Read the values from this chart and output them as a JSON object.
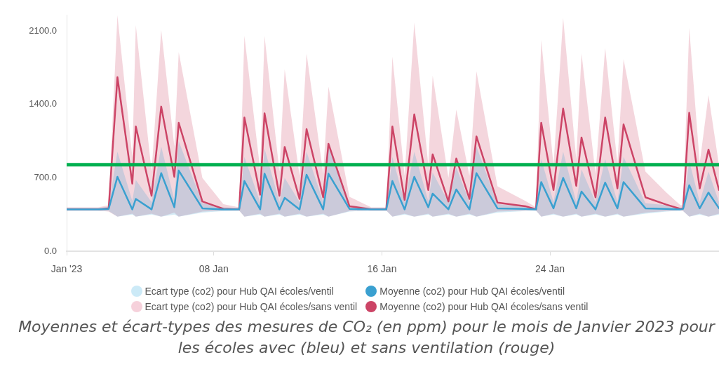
{
  "chart_data": {
    "type": "line",
    "x": [
      "2023-01-01T00:00",
      "2023-01-02T12:00",
      "2023-01-03T00:00",
      "2023-01-03T10:00",
      "2023-01-04T03:00",
      "2023-01-04T07:00",
      "2023-01-05T01:00",
      "2023-01-05T12:00",
      "2023-01-06T03:00",
      "2023-01-06T08:00",
      "2023-01-07T11:00",
      "2023-01-08T11:00",
      "2023-01-09T05:00",
      "2023-01-09T11:00",
      "2023-01-10T05:00",
      "2023-01-10T10:00",
      "2023-01-11T03:00",
      "2023-01-11T09:00",
      "2023-01-12T02:00",
      "2023-01-12T10:00",
      "2023-01-13T05:00",
      "2023-01-13T11:00",
      "2023-01-14T11:00",
      "2023-01-15T12:00",
      "2023-01-16T05:00",
      "2023-01-16T12:00",
      "2023-01-17T02:00",
      "2023-01-17T13:00",
      "2023-01-18T05:00",
      "2023-01-18T10:00",
      "2023-01-19T04:00",
      "2023-01-19T13:00",
      "2023-01-20T04:00",
      "2023-01-20T12:00",
      "2023-01-21T12:00",
      "2023-01-22T20:00",
      "2023-01-23T08:00",
      "2023-01-23T14:00",
      "2023-01-24T04:00",
      "2023-01-24T15:00",
      "2023-01-25T06:00",
      "2023-01-25T12:00",
      "2023-01-26T04:00",
      "2023-01-26T15:00",
      "2023-01-27T05:00",
      "2023-01-27T12:00",
      "2023-01-28T13:00",
      "2023-01-29T13:00",
      "2023-01-30T05:00",
      "2023-01-30T08:00",
      "2023-01-30T15:00",
      "2023-01-31T03:00",
      "2023-01-31T13:00",
      "2023-02-01T01:00"
    ],
    "series": [
      {
        "name": "Ecart type (co2) pour Hub QAI écoles/ventil",
        "type": "area",
        "color": "#c3e6f6",
        "values": [
          null,
          null,
          null,
          null,
          null,
          null,
          null,
          null,
          null,
          null,
          null,
          null,
          null,
          null,
          null,
          null,
          null,
          null,
          null,
          null,
          null,
          null,
          null,
          null,
          null,
          null,
          null,
          null,
          null,
          null,
          null,
          null,
          null,
          null,
          null,
          null,
          null,
          null,
          null,
          null,
          null,
          null,
          null,
          null,
          null,
          null,
          null,
          null,
          null,
          null,
          null,
          null,
          null,
          null
        ]
      },
      {
        "name": "Moyenne (co2) pour Hub QAI écoles/ventil",
        "color": "#3aa0d0",
        "values": [
          400,
          400,
          405,
          710,
          400,
          500,
          400,
          745,
          420,
          770,
          410,
          400,
          400,
          670,
          400,
          740,
          400,
          510,
          400,
          730,
          400,
          740,
          405,
          400,
          400,
          670,
          400,
          710,
          420,
          550,
          400,
          590,
          400,
          745,
          410,
          405,
          400,
          660,
          410,
          700,
          410,
          570,
          400,
          655,
          410,
          660,
          410,
          405,
          400,
          405,
          630,
          410,
          560,
          410
        ],
        "lower": [
          390,
          390,
          385,
          330,
          350,
          330,
          350,
          330,
          350,
          330,
          370,
          385,
          390,
          330,
          350,
          330,
          350,
          330,
          350,
          330,
          350,
          330,
          380,
          390,
          390,
          330,
          350,
          330,
          350,
          330,
          350,
          330,
          350,
          330,
          370,
          385,
          390,
          330,
          350,
          330,
          350,
          330,
          350,
          330,
          350,
          330,
          360,
          380,
          390,
          385,
          330,
          350,
          330,
          350
        ],
        "upper": [
          415,
          415,
          425,
          950,
          480,
          680,
          470,
          1000,
          490,
          1050,
          460,
          420,
          415,
          900,
          470,
          980,
          470,
          700,
          470,
          950,
          470,
          1000,
          440,
          415,
          415,
          900,
          470,
          950,
          480,
          750,
          470,
          800,
          470,
          1000,
          450,
          430,
          415,
          880,
          470,
          950,
          470,
          780,
          470,
          880,
          470,
          900,
          460,
          440,
          415,
          420,
          860,
          470,
          760,
          470
        ]
      },
      {
        "name": "Ecart type (co2) pour Hub QAI écoles/sans ventil",
        "type": "area",
        "color": "#f5c9d5",
        "values": [
          null,
          null,
          null,
          null,
          null,
          null,
          null,
          null,
          null,
          null,
          null,
          null,
          null,
          null,
          null,
          null,
          null,
          null,
          null,
          null,
          null,
          null,
          null,
          null,
          null,
          null,
          null,
          null,
          null,
          null,
          null,
          null,
          null,
          null,
          null,
          null,
          null,
          null,
          null,
          null,
          null,
          null,
          null,
          null,
          null,
          null,
          null,
          null,
          null,
          null,
          null,
          null,
          null,
          null
        ]
      },
      {
        "name": "Moyenne (co2) pour Hub QAI écoles/sans ventil",
        "color": "#cc4466",
        "values": [
          400,
          400,
          410,
          1660,
          645,
          1190,
          530,
          1380,
          710,
          1225,
          475,
          405,
          400,
          1275,
          540,
          1315,
          530,
          995,
          500,
          1165,
          515,
          1025,
          430,
          400,
          400,
          1190,
          490,
          1305,
          585,
          925,
          475,
          885,
          500,
          1095,
          465,
          430,
          400,
          1225,
          585,
          1360,
          625,
          1085,
          515,
          1275,
          600,
          1210,
          515,
          445,
          405,
          410,
          1320,
          600,
          970,
          585
        ],
        "lower": [
          390,
          390,
          380,
          330,
          360,
          330,
          360,
          330,
          370,
          330,
          380,
          390,
          390,
          330,
          360,
          330,
          360,
          330,
          360,
          330,
          360,
          330,
          385,
          390,
          390,
          330,
          360,
          330,
          360,
          330,
          360,
          330,
          360,
          330,
          380,
          390,
          390,
          330,
          360,
          330,
          360,
          330,
          360,
          330,
          360,
          330,
          370,
          385,
          390,
          385,
          330,
          360,
          330,
          360
        ],
        "upper": [
          420,
          420,
          440,
          2250,
          900,
          2155,
          760,
          2110,
          1000,
          1900,
          700,
          450,
          420,
          2055,
          780,
          2055,
          760,
          1735,
          720,
          1885,
          740,
          1570,
          520,
          420,
          420,
          1855,
          720,
          2180,
          820,
          1675,
          700,
          1350,
          720,
          1715,
          620,
          480,
          420,
          2015,
          820,
          2225,
          880,
          1885,
          740,
          1940,
          840,
          1830,
          760,
          560,
          440,
          440,
          2130,
          840,
          1490,
          820
        ]
      }
    ],
    "xlim": [
      "2023-01-01",
      "2023-02-01T01:00"
    ],
    "xticks": [
      {
        "value": "2023-01-01",
        "label": "Jan '23"
      },
      {
        "value": "2023-01-08",
        "label": "08 Jan"
      },
      {
        "value": "2023-01-16",
        "label": "16 Jan"
      },
      {
        "value": "2023-01-24",
        "label": "24 Jan"
      }
    ],
    "ylim": [
      0,
      2250
    ],
    "yticks": [
      {
        "value": 0,
        "label": "0.0"
      },
      {
        "value": 700,
        "label": "700.0"
      },
      {
        "value": 1400,
        "label": "1400.0"
      },
      {
        "value": 2100,
        "label": "2100.0"
      }
    ],
    "ref_lines": [
      {
        "axis": "y",
        "value": 825,
        "color": "#00b050"
      }
    ],
    "grid": false,
    "legend": "bottom",
    "marker": "none",
    "line_style": "solid",
    "annotations": [
      "Moyennes et écart-types des mesures de CO₂ (en ppm) pour le mois de Janvier 2023 pour les écoles avec (bleu) et sans ventilation (rouge)"
    ]
  }
}
